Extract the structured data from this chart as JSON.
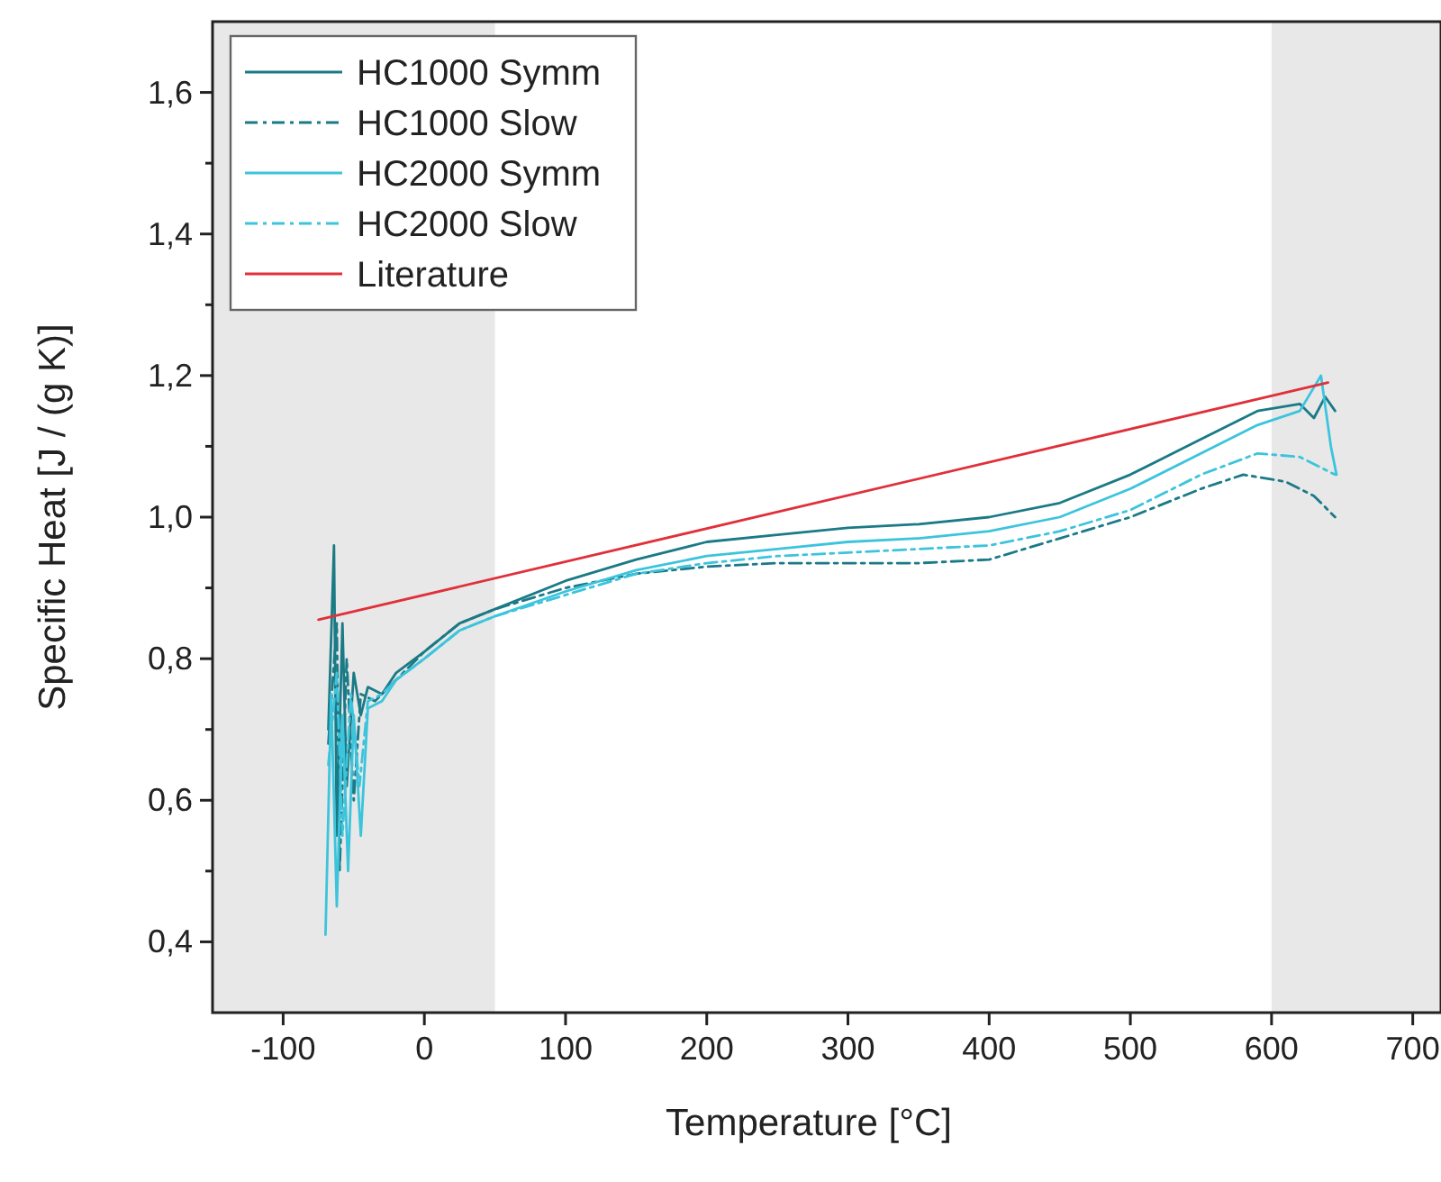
{
  "chart_data": {
    "type": "line",
    "xlabel": "Temperature [°C]",
    "ylabel": "Specific Heat [J / (g K)]",
    "xlim": [
      -150,
      720
    ],
    "xticks": [
      -100,
      0,
      100,
      200,
      300,
      400,
      500,
      600,
      700
    ],
    "ylim": [
      0.3,
      1.7
    ],
    "yticks": [
      {
        "value": 0.4,
        "label": "0,4"
      },
      {
        "value": 0.5,
        "label": null
      },
      {
        "value": 0.6,
        "label": "0,6"
      },
      {
        "value": 0.7,
        "label": null
      },
      {
        "value": 0.8,
        "label": "0,8"
      },
      {
        "value": 0.9,
        "label": null
      },
      {
        "value": 1.0,
        "label": "1,0"
      },
      {
        "value": 1.1,
        "label": null
      },
      {
        "value": 1.2,
        "label": "1,2"
      },
      {
        "value": 1.3,
        "label": null
      },
      {
        "value": 1.4,
        "label": "1,4"
      },
      {
        "value": 1.5,
        "label": null
      },
      {
        "value": 1.6,
        "label": "1,6"
      }
    ],
    "grid": false,
    "legend": "top left",
    "marker": "none",
    "bands": [
      {
        "axis": "x",
        "from": -150,
        "to": 50,
        "color": "#e8e8e8"
      },
      {
        "axis": "x",
        "from": 600,
        "to": 720,
        "color": "#e8e8e8"
      }
    ],
    "series": [
      {
        "name": "HC1000 Symm",
        "color": "#1a7a86",
        "line_style": "solid",
        "x": [
          -68,
          -64,
          -62,
          -58,
          -55,
          -50,
          -45,
          -40,
          -30,
          -20,
          0,
          25,
          50,
          100,
          150,
          200,
          250,
          300,
          350,
          400,
          450,
          500,
          550,
          590,
          620,
          630,
          638,
          645
        ],
        "values": [
          0.7,
          0.96,
          0.55,
          0.85,
          0.62,
          0.78,
          0.72,
          0.76,
          0.75,
          0.78,
          0.81,
          0.85,
          0.87,
          0.91,
          0.94,
          0.965,
          0.975,
          0.985,
          0.99,
          1.0,
          1.02,
          1.06,
          1.11,
          1.15,
          1.16,
          1.14,
          1.17,
          1.15
        ]
      },
      {
        "name": "HC1000 Slow",
        "color": "#1a7a86",
        "line_style": "dashed",
        "x": [
          -68,
          -62,
          -60,
          -55,
          -50,
          -45,
          -35,
          -20,
          0,
          25,
          50,
          100,
          150,
          200,
          250,
          300,
          350,
          400,
          450,
          500,
          550,
          580,
          610,
          630,
          645
        ],
        "values": [
          0.68,
          0.85,
          0.5,
          0.8,
          0.6,
          0.75,
          0.74,
          0.77,
          0.81,
          0.85,
          0.87,
          0.9,
          0.92,
          0.93,
          0.935,
          0.935,
          0.935,
          0.94,
          0.97,
          1.0,
          1.04,
          1.06,
          1.05,
          1.03,
          1.0
        ]
      },
      {
        "name": "HC2000 Symm",
        "color": "#3cc4dc",
        "line_style": "solid",
        "x": [
          -70,
          -66,
          -62,
          -58,
          -54,
          -50,
          -45,
          -40,
          -30,
          -20,
          0,
          25,
          50,
          100,
          150,
          200,
          250,
          300,
          350,
          400,
          450,
          500,
          550,
          590,
          620,
          635,
          642,
          646
        ],
        "values": [
          0.41,
          0.75,
          0.45,
          0.72,
          0.5,
          0.72,
          0.55,
          0.73,
          0.74,
          0.77,
          0.8,
          0.84,
          0.86,
          0.895,
          0.925,
          0.945,
          0.955,
          0.965,
          0.97,
          0.98,
          1.0,
          1.04,
          1.09,
          1.13,
          1.15,
          1.2,
          1.1,
          1.06
        ]
      },
      {
        "name": "HC2000 Slow",
        "color": "#3cc4dc",
        "line_style": "dashed",
        "x": [
          -68,
          -62,
          -58,
          -52,
          -46,
          -40,
          -30,
          -20,
          0,
          25,
          50,
          100,
          150,
          200,
          250,
          300,
          350,
          400,
          450,
          500,
          550,
          590,
          620,
          645
        ],
        "values": [
          0.65,
          0.78,
          0.55,
          0.75,
          0.62,
          0.74,
          0.75,
          0.77,
          0.8,
          0.84,
          0.86,
          0.89,
          0.92,
          0.935,
          0.945,
          0.95,
          0.955,
          0.96,
          0.98,
          1.01,
          1.06,
          1.09,
          1.085,
          1.06
        ]
      },
      {
        "name": "Literature",
        "color": "#e0303a",
        "line_style": "solid",
        "x": [
          -75,
          640
        ],
        "values": [
          0.855,
          1.19
        ]
      }
    ]
  }
}
